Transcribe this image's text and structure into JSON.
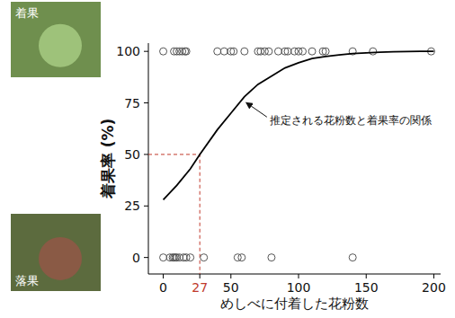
{
  "chart_data": {
    "type": "scatter",
    "xlabel": "めしべに付着した花粉数",
    "ylabel": "着果率 (%)",
    "xlim": [
      -11,
      205
    ],
    "ylim": [
      -8,
      104
    ],
    "xticks": [
      0,
      27,
      50,
      100,
      150,
      200
    ],
    "yticks": [
      0,
      25,
      50,
      75,
      100
    ],
    "grid": false,
    "series": [
      {
        "type": "scatter",
        "marker": "circle-open",
        "color": "#555555",
        "x": [
          0,
          8,
          10,
          12,
          14,
          16,
          17,
          40,
          45,
          50,
          52,
          60,
          70,
          72,
          75,
          78,
          85,
          90,
          92,
          97,
          100,
          103,
          110,
          118,
          120,
          140,
          155,
          198,
          0,
          5,
          7,
          8,
          9,
          10,
          12,
          15,
          17,
          20,
          30,
          55,
          58,
          80,
          140
        ],
        "values": [
          100,
          100,
          100,
          100,
          100,
          100,
          100,
          100,
          100,
          100,
          100,
          100,
          100,
          100,
          100,
          100,
          100,
          100,
          100,
          100,
          100,
          100,
          100,
          100,
          100,
          100,
          100,
          100,
          0,
          0,
          0,
          0,
          0,
          0,
          0,
          0,
          0,
          0,
          0,
          0,
          0,
          0,
          0
        ]
      },
      {
        "type": "line",
        "line_style": "solid",
        "color": "#000000",
        "x": [
          0,
          10,
          20,
          27,
          40,
          50,
          60,
          70,
          80,
          90,
          100,
          110,
          120,
          130,
          140,
          150,
          160,
          170,
          180,
          190,
          200
        ],
        "values": [
          28,
          35,
          43,
          50,
          62,
          70,
          78,
          84,
          88,
          92,
          94.5,
          96.5,
          97.5,
          98.3,
          98.9,
          99.3,
          99.6,
          99.8,
          99.9,
          100,
          100
        ]
      }
    ],
    "ref_lines": {
      "x": 27,
      "y": 50,
      "color": "#c0392b",
      "line_style": "dashed"
    },
    "annotations": [
      {
        "text": "推定される花粉数と着果率の関係",
        "x": 60,
        "y": 76
      }
    ],
    "images": [
      {
        "label": "着果"
      },
      {
        "label": "落果"
      }
    ]
  }
}
